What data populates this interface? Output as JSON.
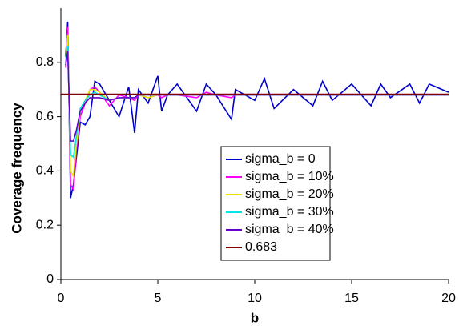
{
  "chart_data": {
    "type": "line",
    "x_label": "b",
    "y_label": "Coverage frequency",
    "x": [
      0.25,
      0.35,
      0.5,
      0.65,
      0.8,
      1,
      1.25,
      1.5,
      1.75,
      2,
      2.5,
      3,
      3.5,
      3.8,
      4,
      4.5,
      5,
      5.2,
      5.5,
      6,
      7,
      7.5,
      8,
      8.8,
      9,
      10,
      10.5,
      11,
      12,
      13,
      13.5,
      14,
      15,
      16,
      16.5,
      17,
      18,
      18.5,
      19,
      20
    ],
    "series": [
      {
        "name": "sigma_b = 0",
        "color": "#0000cc",
        "values": [
          0.82,
          0.95,
          0.3,
          0.35,
          0.45,
          0.58,
          0.57,
          0.6,
          0.73,
          0.72,
          0.66,
          0.6,
          0.71,
          0.54,
          0.7,
          0.65,
          0.75,
          0.62,
          0.68,
          0.72,
          0.62,
          0.72,
          0.68,
          0.59,
          0.7,
          0.66,
          0.74,
          0.63,
          0.7,
          0.64,
          0.73,
          0.66,
          0.72,
          0.64,
          0.72,
          0.67,
          0.72,
          0.65,
          0.72,
          0.69
        ]
      },
      {
        "name": "sigma_b = 10%",
        "color": "#ff00ff",
        "values": [
          0.78,
          0.93,
          0.35,
          0.33,
          0.48,
          0.6,
          0.65,
          0.7,
          0.71,
          0.69,
          0.64,
          0.68,
          0.67,
          0.66,
          0.68,
          0.67,
          0.68,
          0.67,
          0.68,
          0.68,
          0.67,
          0.69,
          0.68,
          0.67,
          0.68,
          0.68,
          0.68,
          0.68,
          0.68,
          0.68,
          0.68,
          0.68,
          0.68,
          0.68,
          0.68,
          0.68,
          0.68,
          0.68,
          0.68,
          0.68
        ]
      },
      {
        "name": "sigma_b = 20%",
        "color": "#e6e600",
        "values": [
          0.8,
          0.9,
          0.4,
          0.38,
          0.5,
          0.62,
          0.66,
          0.7,
          0.7,
          0.69,
          0.66,
          0.67,
          0.67,
          0.67,
          0.68,
          0.67,
          0.68,
          0.68,
          0.68,
          0.68,
          0.68,
          0.68,
          0.68,
          0.68,
          0.68,
          0.68,
          0.68,
          0.68,
          0.68,
          0.68,
          0.68,
          0.68,
          0.68,
          0.68,
          0.68,
          0.68,
          0.68,
          0.68,
          0.68,
          0.68
        ]
      },
      {
        "name": "sigma_b = 30%",
        "color": "#00e6e6",
        "values": [
          0.8,
          0.86,
          0.46,
          0.45,
          0.53,
          0.63,
          0.66,
          0.68,
          0.69,
          0.68,
          0.66,
          0.67,
          0.67,
          0.67,
          0.68,
          0.68,
          0.68,
          0.68,
          0.68,
          0.68,
          0.68,
          0.68,
          0.68,
          0.68,
          0.68,
          0.68,
          0.68,
          0.68,
          0.68,
          0.68,
          0.68,
          0.68,
          0.68,
          0.68,
          0.68,
          0.68,
          0.68,
          0.68,
          0.68,
          0.68
        ]
      },
      {
        "name": "sigma_b = 40%",
        "color": "#6600cc",
        "values": [
          0.79,
          0.84,
          0.51,
          0.51,
          0.55,
          0.62,
          0.65,
          0.67,
          0.67,
          0.67,
          0.66,
          0.67,
          0.67,
          0.67,
          0.68,
          0.68,
          0.68,
          0.68,
          0.68,
          0.68,
          0.68,
          0.68,
          0.68,
          0.68,
          0.68,
          0.68,
          0.68,
          0.68,
          0.68,
          0.68,
          0.68,
          0.68,
          0.68,
          0.68,
          0.68,
          0.68,
          0.68,
          0.68,
          0.68,
          0.68
        ]
      },
      {
        "name": "0.683",
        "color": "#800000",
        "x": [
          0,
          20
        ],
        "values": [
          0.683,
          0.683
        ]
      }
    ],
    "xlim": [
      0,
      20
    ],
    "xticks": [
      0,
      5,
      10,
      15,
      20
    ],
    "ylim": [
      0,
      1
    ],
    "yticks": [
      0,
      0.2,
      0.4,
      0.6,
      0.8
    ],
    "grid": false,
    "legend": "lower right"
  }
}
